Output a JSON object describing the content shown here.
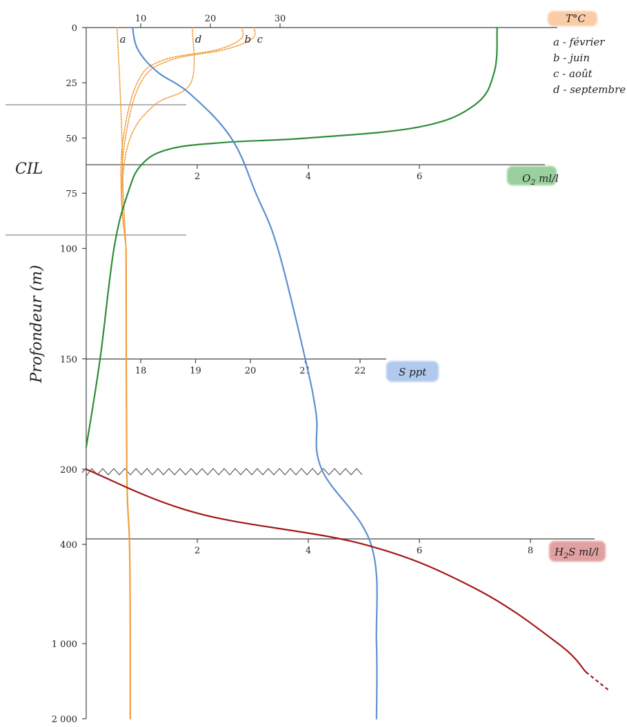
{
  "chart_data": {
    "type": "line",
    "ylabel": "Profondeur (m)",
    "depth_ticks_upper": [
      "0",
      "25",
      "50",
      "75",
      "100",
      "150",
      "200"
    ],
    "depth_ticks_lower": [
      "400",
      "1 000",
      "2 000"
    ],
    "cil_label": "CIL",
    "axes": {
      "temperature": {
        "label": "T°C",
        "ticks": [
          "10",
          "20",
          "30"
        ],
        "color": "#f39c3c",
        "legend": [
          {
            "key": "a",
            "text": "a - février"
          },
          {
            "key": "b",
            "text": "b - juin"
          },
          {
            "key": "c",
            "text": "c - août"
          },
          {
            "key": "d",
            "text": "d - septembre"
          }
        ]
      },
      "oxygen": {
        "label": "O2 ml/l",
        "ticks": [
          "2",
          "4",
          "6"
        ],
        "color": "#2e8b3a"
      },
      "salinity": {
        "label": "S ppt",
        "ticks": [
          "18",
          "19",
          "20",
          "21",
          "22"
        ],
        "color": "#5b8fcf"
      },
      "h2s": {
        "label": "H2S ml/l",
        "ticks": [
          "2",
          "4",
          "6",
          "8"
        ],
        "color": "#a31515"
      }
    },
    "series": [
      {
        "key": "temp-a",
        "axis": "temperature",
        "depth": [
          0,
          25,
          50,
          75,
          100
        ],
        "values": [
          6.6,
          7.0,
          7.3,
          7.5,
          7.9
        ]
      },
      {
        "key": "temp-b",
        "axis": "temperature",
        "depth": [
          0,
          5,
          10,
          15,
          25,
          50,
          75,
          100
        ],
        "values": [
          24.5,
          24.4,
          21,
          13,
          9.5,
          7.5,
          7.2,
          7.9
        ]
      },
      {
        "key": "temp-c",
        "axis": "temperature",
        "depth": [
          0,
          5,
          10,
          15,
          25,
          50,
          75,
          100
        ],
        "values": [
          26.3,
          26.0,
          22,
          14,
          10,
          7.8,
          7.3,
          7.9
        ]
      },
      {
        "key": "temp-d",
        "axis": "temperature",
        "depth": [
          0,
          25,
          35,
          50,
          75,
          100
        ],
        "values": [
          17.4,
          17.2,
          12,
          8.5,
          7.3,
          7.9
        ]
      },
      {
        "key": "temp-deep",
        "axis": "temperature",
        "depth": [
          100,
          200,
          400,
          1000,
          2000
        ],
        "values": [
          7.9,
          8.0,
          8.4,
          8.5,
          8.5
        ]
      },
      {
        "key": "oxygen",
        "axis": "oxygen",
        "depth": [
          0,
          20,
          35,
          45,
          50,
          52,
          55,
          62,
          75,
          100,
          150,
          190
        ],
        "values": [
          7.4,
          7.35,
          7.0,
          6.0,
          4.0,
          2.5,
          1.5,
          1.0,
          0.75,
          0.5,
          0.25,
          0.0
        ]
      },
      {
        "key": "salinity",
        "axis": "salinity",
        "depth": [
          0,
          10,
          20,
          30,
          50,
          75,
          100,
          150,
          175,
          200,
          400,
          1000,
          2000
        ],
        "values": [
          17.85,
          17.95,
          18.3,
          18.9,
          19.65,
          20.1,
          20.5,
          21.0,
          21.2,
          21.3,
          22.2,
          22.3,
          22.3
        ]
      },
      {
        "key": "h2s",
        "axis": "h2s",
        "depth": [
          200,
          300,
          400,
          600,
          1000,
          1300
        ],
        "values": [
          0.0,
          2.0,
          5.0,
          7.0,
          8.5,
          9.0
        ]
      }
    ]
  }
}
